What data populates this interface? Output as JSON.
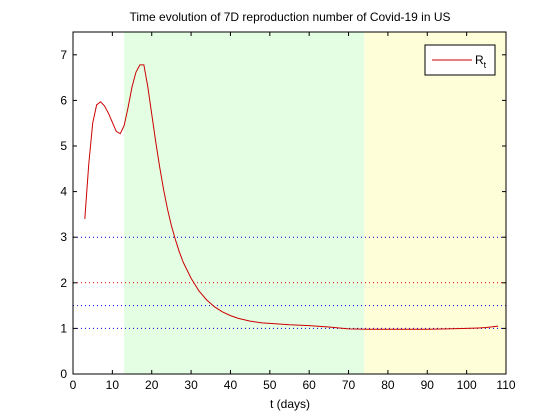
{
  "chart_data": {
    "type": "line",
    "title": "Time evolution of 7D reproduction number of Covid-19 in US",
    "xlabel": "t (days)",
    "ylabel": "",
    "xlim": [
      0,
      110
    ],
    "ylim": [
      0,
      7.5
    ],
    "xticks": [
      0,
      10,
      20,
      30,
      40,
      50,
      60,
      70,
      80,
      90,
      100,
      110
    ],
    "yticks": [
      0,
      1,
      2,
      3,
      4,
      5,
      6,
      7
    ],
    "grid": false,
    "legend_position": "top-right",
    "legend_label": "R",
    "legend_subscript": "t",
    "background_bands": [
      {
        "x_start": 13,
        "x_end": 74,
        "color": "#e4fee4"
      },
      {
        "x_start": 74,
        "x_end": 110,
        "color": "#fefed9"
      }
    ],
    "reference_lines": [
      {
        "y": 3,
        "color": "#0000cc"
      },
      {
        "y": 2,
        "color": "#dd0000"
      },
      {
        "y": 1.5,
        "color": "#0000cc"
      },
      {
        "y": 1,
        "color": "#0000cc"
      }
    ],
    "series": [
      {
        "color": "#cc0000",
        "x": [
          3,
          4,
          5,
          6,
          7,
          8,
          9,
          10,
          11,
          12,
          13,
          14,
          15,
          16,
          17,
          18,
          19,
          20,
          21,
          22,
          23,
          24,
          25,
          26,
          27,
          28,
          30,
          32,
          34,
          36,
          38,
          40,
          42,
          45,
          48,
          50,
          55,
          60,
          65,
          70,
          75,
          80,
          85,
          90,
          95,
          100,
          103,
          105,
          108
        ],
        "y": [
          3.4,
          4.6,
          5.5,
          5.9,
          5.97,
          5.88,
          5.72,
          5.52,
          5.32,
          5.27,
          5.45,
          5.85,
          6.3,
          6.62,
          6.78,
          6.78,
          6.3,
          5.7,
          5.1,
          4.55,
          4.05,
          3.62,
          3.25,
          2.95,
          2.68,
          2.45,
          2.1,
          1.82,
          1.62,
          1.47,
          1.36,
          1.28,
          1.22,
          1.16,
          1.12,
          1.11,
          1.08,
          1.06,
          1.03,
          0.99,
          0.98,
          0.98,
          0.98,
          0.98,
          0.99,
          1.0,
          1.01,
          1.02,
          1.05
        ]
      }
    ]
  }
}
